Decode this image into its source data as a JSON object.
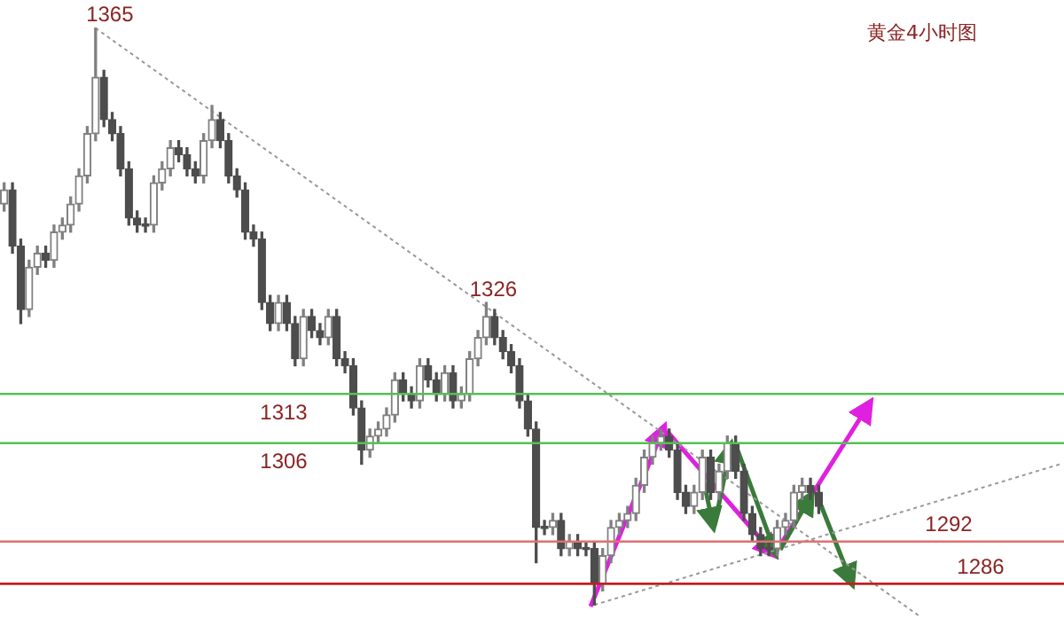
{
  "chart_data": {
    "type": "candlestick",
    "title": "黄金4小时图",
    "colors": [
      "#808080",
      "#4d4d4d",
      "#4d4d4d",
      "#808080",
      "#808080",
      "#4d4d4d",
      "#808080",
      "#808080",
      "#808080",
      "#808080",
      "#808080",
      "#808080",
      "#4d4d4d",
      "#4d4d4d",
      "#4d4d4d",
      "#4d4d4d",
      "#4d4d4d",
      "#4d4d4d",
      "#808080",
      "#808080",
      "#808080",
      "#4d4d4d",
      "#4d4d4d",
      "#4d4d4d",
      "#808080",
      "#808080",
      "#4d4d4d",
      "#4d4d4d",
      "#4d4d4d",
      "#4d4d4d",
      "#4d4d4d",
      "#4d4d4d",
      "#4d4d4d",
      "#808080",
      "#4d4d4d",
      "#4d4d4d",
      "#808080",
      "#4d4d4d",
      "#4d4d4d",
      "#808080",
      "#4d4d4d",
      "#4d4d4d",
      "#4d4d4d",
      "#4d4d4d",
      "#808080",
      "#808080",
      "#808080",
      "#808080",
      "#4d4d4d",
      "#4d4d4d",
      "#808080",
      "#4d4d4d",
      "#4d4d4d",
      "#808080",
      "#4d4d4d",
      "#808080",
      "#808080",
      "#808080",
      "#808080",
      "#4d4d4d",
      "#4d4d4d",
      "#4d4d4d",
      "#4d4d4d",
      "#4d4d4d",
      "#4d4d4d",
      "#4d4d4d",
      "#808080",
      "#4d4d4d",
      "#808080",
      "#4d4d4d",
      "#4d4d4d",
      "#4d4d4d",
      "#808080",
      "#808080",
      "#808080",
      "#808080",
      "#808080",
      "#808080",
      "#808080",
      "#808080",
      "#4d4d4d",
      "#4d4d4d",
      "#4d4d4d",
      "#808080",
      "#808080",
      "#4d4d4d",
      "#808080",
      "#808080",
      "#4d4d4d",
      "#4d4d4d",
      "#4d4d4d",
      "#4d4d4d",
      "#4d4d4d",
      "#808080",
      "#808080",
      "#808080",
      "#808080",
      "#4d4d4d",
      "#4d4d4d",
      null,
      null,
      null,
      null,
      null,
      null,
      null,
      null,
      null,
      null,
      null,
      null,
      null,
      null,
      null,
      null,
      null,
      null,
      null,
      null,
      null,
      null,
      null,
      null,
      null,
      null,
      null,
      null,
      null
    ],
    "legend": false,
    "tick_labels": false,
    "ylim": [
      1280,
      1369
    ],
    "categories": [
      null,
      null,
      null,
      null,
      null,
      null,
      null,
      null,
      null,
      null,
      null,
      null,
      null,
      null,
      null,
      null,
      null,
      null,
      null,
      null,
      null,
      null,
      null,
      null,
      null,
      null,
      null,
      null,
      null,
      null,
      null,
      null,
      null,
      null,
      null,
      null,
      null,
      null,
      null,
      null,
      null,
      null,
      null,
      null,
      null,
      null,
      null,
      null,
      null,
      null,
      null,
      null,
      null,
      null,
      null,
      null,
      null,
      null,
      null,
      null,
      null,
      null,
      null,
      null,
      null,
      null,
      null,
      null,
      null,
      null,
      null,
      null,
      null,
      null,
      null,
      null,
      null,
      null,
      null,
      null,
      null,
      null,
      null,
      null,
      null,
      null,
      null,
      null,
      null,
      null,
      null,
      null,
      null,
      null,
      null,
      null,
      null,
      null,
      null,
      null,
      null,
      null,
      null,
      null,
      null,
      null,
      null,
      null,
      null,
      null,
      null,
      null,
      null,
      null,
      null,
      null,
      null,
      null,
      null,
      null,
      null,
      null,
      null,
      null,
      null,
      null,
      null,
      null
    ],
    "ohlc": [
      [
        1340,
        1343,
        1339,
        1342
      ],
      [
        1342,
        1343,
        1333,
        1334
      ],
      [
        1334,
        1335,
        1323,
        1325
      ],
      [
        1325,
        1332,
        1324,
        1331
      ],
      [
        1331,
        1334,
        1330,
        1333
      ],
      [
        1333,
        1334,
        1331,
        1332
      ],
      [
        1332,
        1337,
        1331,
        1336
      ],
      [
        1336,
        1338,
        1335,
        1337
      ],
      [
        1337,
        1341,
        1336,
        1340
      ],
      [
        1340,
        1345,
        1339,
        1344
      ],
      [
        1344,
        1351,
        1343,
        1350
      ],
      [
        1350,
        1365,
        1349,
        1358
      ],
      [
        1358,
        1359,
        1351,
        1352
      ],
      [
        1352,
        1353,
        1349,
        1350
      ],
      [
        1350,
        1351,
        1344,
        1345
      ],
      [
        1345,
        1346,
        1337,
        1338
      ],
      [
        1338,
        1339,
        1336,
        1337
      ],
      [
        1337,
        1338,
        1336,
        1337
      ],
      [
        1337,
        1344,
        1336,
        1343
      ],
      [
        1343,
        1346,
        1342,
        1345
      ],
      [
        1345,
        1349,
        1344,
        1348
      ],
      [
        1348,
        1349,
        1346,
        1347
      ],
      [
        1347,
        1348,
        1344,
        1345
      ],
      [
        1345,
        1346,
        1343,
        1344
      ],
      [
        1344,
        1350,
        1343,
        1349
      ],
      [
        1349,
        1354,
        1348,
        1352
      ],
      [
        1352,
        1353,
        1348,
        1349
      ],
      [
        1349,
        1350,
        1343,
        1344
      ],
      [
        1344,
        1345,
        1341,
        1342
      ],
      [
        1342,
        1343,
        1335,
        1336
      ],
      [
        1336,
        1337,
        1334,
        1335
      ],
      [
        1335,
        1336,
        1325,
        1326
      ],
      [
        1326,
        1327,
        1322,
        1323
      ],
      [
        1323,
        1327,
        1322,
        1326
      ],
      [
        1326,
        1327,
        1322,
        1323
      ],
      [
        1323,
        1324,
        1317,
        1318
      ],
      [
        1318,
        1325,
        1317,
        1324
      ],
      [
        1324,
        1325,
        1321,
        1322
      ],
      [
        1322,
        1323,
        1320,
        1321
      ],
      [
        1321,
        1325,
        1320,
        1324
      ],
      [
        1324,
        1325,
        1317,
        1318
      ],
      [
        1318,
        1319,
        1316,
        1317
      ],
      [
        1317,
        1318,
        1310,
        1311
      ],
      [
        1311,
        1312,
        1303,
        1305
      ],
      [
        1305,
        1308,
        1304,
        1307
      ],
      [
        1307,
        1309,
        1306,
        1308
      ],
      [
        1308,
        1311,
        1307,
        1310
      ],
      [
        1310,
        1316,
        1309,
        1315
      ],
      [
        1315,
        1316,
        1312,
        1313
      ],
      [
        1313,
        1314,
        1311,
        1312
      ],
      [
        1312,
        1318,
        1311,
        1317
      ],
      [
        1317,
        1318,
        1314,
        1315
      ],
      [
        1315,
        1316,
        1312,
        1313
      ],
      [
        1313,
        1317,
        1312,
        1316
      ],
      [
        1316,
        1317,
        1311,
        1312
      ],
      [
        1312,
        1314,
        1311,
        1313
      ],
      [
        1313,
        1319,
        1312,
        1318
      ],
      [
        1318,
        1322,
        1317,
        1321
      ],
      [
        1321,
        1326,
        1320,
        1324
      ],
      [
        1324,
        1325,
        1320,
        1321
      ],
      [
        1321,
        1322,
        1318,
        1319
      ],
      [
        1319,
        1320,
        1316,
        1317
      ],
      [
        1317,
        1318,
        1311,
        1312
      ],
      [
        1312,
        1313,
        1307,
        1308
      ],
      [
        1308,
        1309,
        1289,
        1294
      ],
      [
        1294,
        1295,
        1293,
        1294
      ],
      [
        1294,
        1296,
        1293,
        1295
      ],
      [
        1295,
        1296,
        1290,
        1291
      ],
      [
        1291,
        1293,
        1290,
        1292
      ],
      [
        1292,
        1293,
        1290,
        1291
      ],
      [
        1291,
        1292,
        1290,
        1291
      ],
      [
        1291,
        1292,
        1283,
        1286
      ],
      [
        1286,
        1291,
        1285,
        1290
      ],
      [
        1290,
        1295,
        1289,
        1294
      ],
      [
        1294,
        1296,
        1293,
        1295
      ],
      [
        1295,
        1297,
        1294,
        1296
      ],
      [
        1296,
        1301,
        1295,
        1300
      ],
      [
        1300,
        1305,
        1299,
        1304
      ],
      [
        1304,
        1307,
        1303,
        1306
      ],
      [
        1306,
        1308,
        1305,
        1307
      ],
      [
        1307,
        1308,
        1304,
        1305
      ],
      [
        1305,
        1306,
        1298,
        1299
      ],
      [
        1299,
        1300,
        1296,
        1297
      ],
      [
        1297,
        1300,
        1296,
        1299
      ],
      [
        1299,
        1305,
        1298,
        1304
      ],
      [
        1304,
        1305,
        1298,
        1299
      ],
      [
        1299,
        1303,
        1298,
        1302
      ],
      [
        1302,
        1307,
        1301,
        1306
      ],
      [
        1306,
        1307,
        1301,
        1302
      ],
      [
        1302,
        1303,
        1295,
        1296
      ],
      [
        1296,
        1297,
        1292,
        1293
      ],
      [
        1293,
        1294,
        1290,
        1291
      ],
      [
        1291,
        1292,
        1290,
        1291
      ],
      [
        1291,
        1295,
        1290,
        1294
      ],
      [
        1294,
        1296,
        1293,
        1295
      ],
      [
        1295,
        1300,
        1294,
        1299
      ],
      [
        1299,
        1301,
        1298,
        1300
      ],
      [
        1300,
        1301,
        1298,
        1299
      ],
      [
        1299,
        1300,
        1296,
        1297
      ],
      null,
      null,
      null,
      null,
      null,
      null,
      null,
      null,
      null,
      null,
      null,
      null,
      null,
      null,
      null,
      null,
      null,
      null,
      null,
      null,
      null,
      null,
      null,
      null,
      null,
      null,
      null,
      null,
      null
    ],
    "series": [
      {
        "type": "line",
        "color": "#999999",
        "line_style": "dotted",
        "marker": "none",
        "values": [
          null,
          null,
          null,
          null,
          null,
          null,
          null,
          null,
          null,
          null,
          null,
          1365,
          null,
          null,
          null,
          null,
          null,
          null,
          null,
          null,
          null,
          null,
          null,
          null,
          null,
          null,
          null,
          null,
          null,
          null,
          null,
          null,
          null,
          null,
          null,
          null,
          null,
          null,
          null,
          null,
          null,
          null,
          null,
          null,
          null,
          null,
          null,
          null,
          null,
          null,
          null,
          null,
          null,
          null,
          null,
          null,
          null,
          null,
          null,
          null,
          null,
          null,
          null,
          null,
          null,
          null,
          null,
          null,
          null,
          null,
          null,
          null,
          null,
          null,
          null,
          null,
          null,
          null,
          null,
          null,
          null,
          null,
          null,
          null,
          null,
          null,
          null,
          null,
          null,
          null,
          null,
          null,
          null,
          null,
          null,
          null,
          null,
          null,
          null,
          null,
          null,
          null,
          null,
          null,
          null,
          null,
          null,
          null,
          null,
          null,
          1281.5,
          null,
          null,
          null,
          null,
          null,
          null,
          null,
          null,
          null,
          null,
          null,
          null,
          null,
          null,
          null,
          null,
          null
        ]
      },
      {
        "type": "line",
        "color": "#999999",
        "line_style": "dotted",
        "marker": "none",
        "values": [
          null,
          null,
          null,
          null,
          null,
          null,
          null,
          null,
          null,
          null,
          null,
          null,
          null,
          null,
          null,
          null,
          null,
          null,
          null,
          null,
          null,
          null,
          null,
          null,
          null,
          null,
          null,
          null,
          null,
          null,
          null,
          null,
          null,
          null,
          null,
          null,
          null,
          null,
          null,
          null,
          null,
          null,
          null,
          null,
          null,
          null,
          null,
          null,
          null,
          null,
          null,
          null,
          null,
          null,
          null,
          null,
          null,
          null,
          null,
          null,
          null,
          null,
          null,
          null,
          null,
          null,
          null,
          null,
          null,
          null,
          null,
          1283,
          null,
          null,
          null,
          null,
          null,
          null,
          null,
          null,
          null,
          null,
          null,
          null,
          null,
          null,
          null,
          null,
          null,
          null,
          null,
          null,
          null,
          null,
          null,
          null,
          null,
          null,
          null,
          null,
          null,
          null,
          null,
          null,
          null,
          null,
          null,
          null,
          null,
          null,
          null,
          null,
          null,
          null,
          null,
          null,
          null,
          null,
          null,
          null,
          null,
          null,
          null,
          null,
          null,
          null,
          null,
          1303
        ]
      }
    ],
    "ref_lines": [
      {
        "axis": "y",
        "value": 1313,
        "label": "1313",
        "color": "#55c055"
      },
      {
        "axis": "y",
        "value": 1306,
        "label": "1306",
        "color": "#55c055"
      },
      {
        "axis": "y",
        "value": 1292,
        "label": "1292",
        "color": "#e07070"
      },
      {
        "axis": "y",
        "value": 1286,
        "label": "1286",
        "color": "#c02020"
      }
    ],
    "annotations": [
      {
        "text": "1365",
        "y": 1365
      },
      {
        "text": "1326",
        "y": 1326
      }
    ]
  }
}
